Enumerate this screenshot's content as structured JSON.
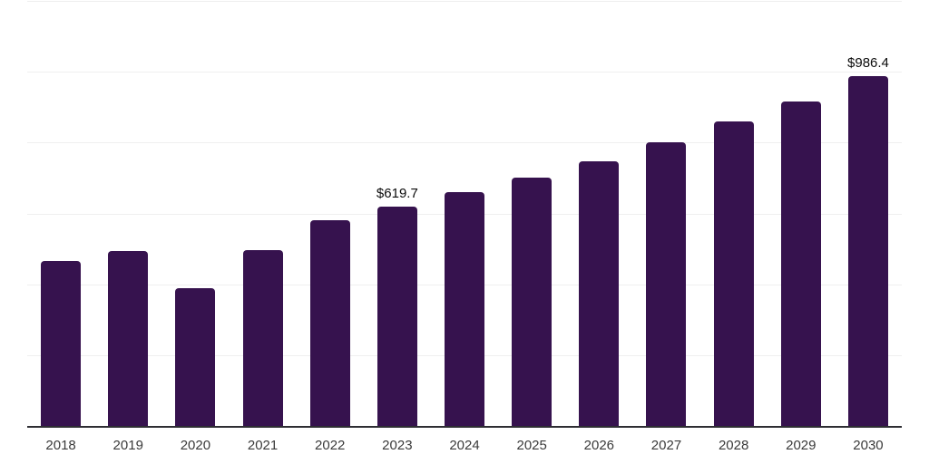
{
  "chart": {
    "bar_color": "#36124E",
    "axis_line_color": "#2e2e33",
    "gridline_color": "#efefef",
    "tick_label_color": "#3a3a3a",
    "data_label_color": "#0b0b0b",
    "background_color": "#ffffff"
  },
  "chart_data": {
    "type": "bar",
    "title": "",
    "xlabel": "",
    "ylabel": "",
    "categories": [
      "2018",
      "2019",
      "2020",
      "2021",
      "2022",
      "2023",
      "2024",
      "2025",
      "2026",
      "2027",
      "2028",
      "2029",
      "2030"
    ],
    "values": [
      465,
      493,
      389,
      497,
      582,
      619.7,
      659,
      700,
      748,
      800,
      859,
      917,
      986.4
    ],
    "data_labels": {
      "2023": "$619.7",
      "2030": "$986.4"
    },
    "ylim": [
      0,
      1200
    ],
    "gridline_step": 200,
    "grid": true,
    "y_tick_labels_visible": false,
    "legend": false
  }
}
